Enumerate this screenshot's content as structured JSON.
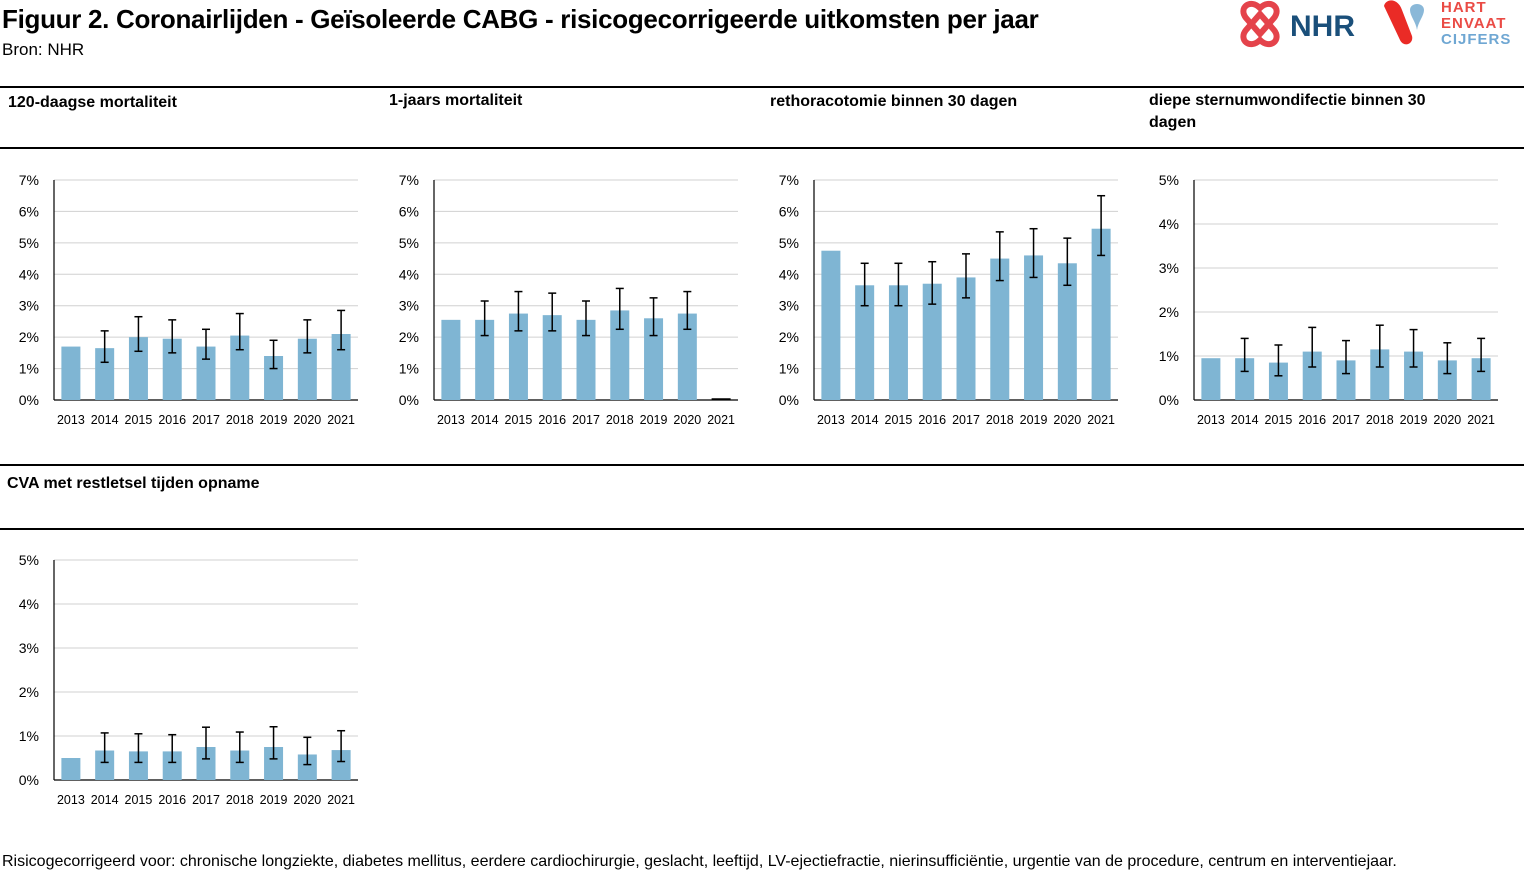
{
  "header": {
    "title": "Figuur 2. Coronairlijden - Geïsoleerde CABG - risicogecorrigeerde uitkomsten per jaar",
    "source": "Bron: NHR"
  },
  "logos": {
    "nhr_text": "NHR",
    "hart_line1": "HART",
    "hart_line2": "ENVAAT",
    "hart_line3": "CIJFERS",
    "colors": {
      "nhr_red": "#e4434b",
      "nhr_blue": "#1a4f7a",
      "hart_red": "#ea2b26",
      "hart_blue": "#8ab8d8",
      "hart_text_red": "#ea4b45",
      "hart_text_blue": "#6fa7d3"
    }
  },
  "colors": {
    "bar": "#7fb5d3",
    "grid": "#d0d0d0",
    "axis": "#000000"
  },
  "footnote": "Risicogecorrigeerd voor: chronische longziekte, diabetes mellitus, eerdere cardiochirurgie, geslacht, leeftijd, LV-ejectiefractie, nierinsufficiëntie, urgentie van de procedure, centrum en interventiejaar.",
  "chart_data": [
    {
      "type": "bar",
      "title": "120-daagse mortaliteit",
      "categories": [
        "2013",
        "2014",
        "2015",
        "2016",
        "2017",
        "2018",
        "2019",
        "2020",
        "2021"
      ],
      "values": [
        1.7,
        1.65,
        2.0,
        1.95,
        1.7,
        2.05,
        1.4,
        1.95,
        2.1
      ],
      "ci_low": [
        null,
        1.2,
        1.55,
        1.5,
        1.3,
        1.6,
        1.0,
        1.5,
        1.6
      ],
      "ci_high": [
        null,
        2.2,
        2.65,
        2.55,
        2.25,
        2.75,
        1.9,
        2.55,
        2.85
      ],
      "ylim": [
        0,
        7
      ],
      "yticks": [
        "0%",
        "1%",
        "2%",
        "3%",
        "4%",
        "5%",
        "6%",
        "7%"
      ],
      "grid": true
    },
    {
      "type": "bar",
      "title": "1-jaars mortaliteit",
      "categories": [
        "2013",
        "2014",
        "2015",
        "2016",
        "2017",
        "2018",
        "2019",
        "2020",
        "2021"
      ],
      "values": [
        2.55,
        2.55,
        2.75,
        2.7,
        2.55,
        2.85,
        2.6,
        2.75,
        0.0
      ],
      "ci_low": [
        null,
        2.05,
        2.2,
        2.2,
        2.05,
        2.25,
        2.05,
        2.25,
        null
      ],
      "ci_high": [
        null,
        3.15,
        3.45,
        3.4,
        3.15,
        3.55,
        3.25,
        3.45,
        null
      ],
      "ylim": [
        0,
        7
      ],
      "yticks": [
        "0%",
        "1%",
        "2%",
        "3%",
        "4%",
        "5%",
        "6%",
        "7%"
      ],
      "grid": true
    },
    {
      "type": "bar",
      "title": "rethoracotomie binnen 30 dagen",
      "categories": [
        "2013",
        "2014",
        "2015",
        "2016",
        "2017",
        "2018",
        "2019",
        "2020",
        "2021"
      ],
      "values": [
        4.75,
        3.65,
        3.65,
        3.7,
        3.9,
        4.5,
        4.6,
        4.35,
        5.45
      ],
      "ci_low": [
        null,
        3.0,
        3.0,
        3.05,
        3.25,
        3.8,
        3.9,
        3.65,
        4.6
      ],
      "ci_high": [
        null,
        4.35,
        4.35,
        4.4,
        4.65,
        5.35,
        5.45,
        5.15,
        6.5
      ],
      "ylim": [
        0,
        7
      ],
      "yticks": [
        "0%",
        "1%",
        "2%",
        "3%",
        "4%",
        "5%",
        "6%",
        "7%"
      ],
      "grid": true
    },
    {
      "type": "bar",
      "title": "diepe sternumwondifectie binnen 30 dagen",
      "categories": [
        "2013",
        "2014",
        "2015",
        "2016",
        "2017",
        "2018",
        "2019",
        "2020",
        "2021"
      ],
      "values": [
        0.95,
        0.95,
        0.85,
        1.1,
        0.9,
        1.15,
        1.1,
        0.9,
        0.95
      ],
      "ci_low": [
        null,
        0.65,
        0.55,
        0.75,
        0.6,
        0.75,
        0.75,
        0.6,
        0.65
      ],
      "ci_high": [
        null,
        1.4,
        1.25,
        1.65,
        1.35,
        1.7,
        1.6,
        1.3,
        1.4
      ],
      "ylim": [
        0,
        5
      ],
      "yticks": [
        "0%",
        "1%",
        "2%",
        "3%",
        "4%",
        "5%"
      ],
      "grid": true
    },
    {
      "type": "bar",
      "title": "CVA met restletsel tijden opname",
      "categories": [
        "2013",
        "2014",
        "2015",
        "2016",
        "2017",
        "2018",
        "2019",
        "2020",
        "2021"
      ],
      "values": [
        0.5,
        0.67,
        0.65,
        0.65,
        0.75,
        0.67,
        0.75,
        0.58,
        0.68
      ],
      "ci_low": [
        null,
        0.4,
        0.4,
        0.4,
        0.48,
        0.4,
        0.48,
        0.35,
        0.42
      ],
      "ci_high": [
        null,
        1.07,
        1.05,
        1.03,
        1.2,
        1.09,
        1.21,
        0.97,
        1.12
      ],
      "ylim": [
        0,
        5
      ],
      "yticks": [
        "0%",
        "1%",
        "2%",
        "3%",
        "4%",
        "5%"
      ],
      "grid": true
    }
  ]
}
